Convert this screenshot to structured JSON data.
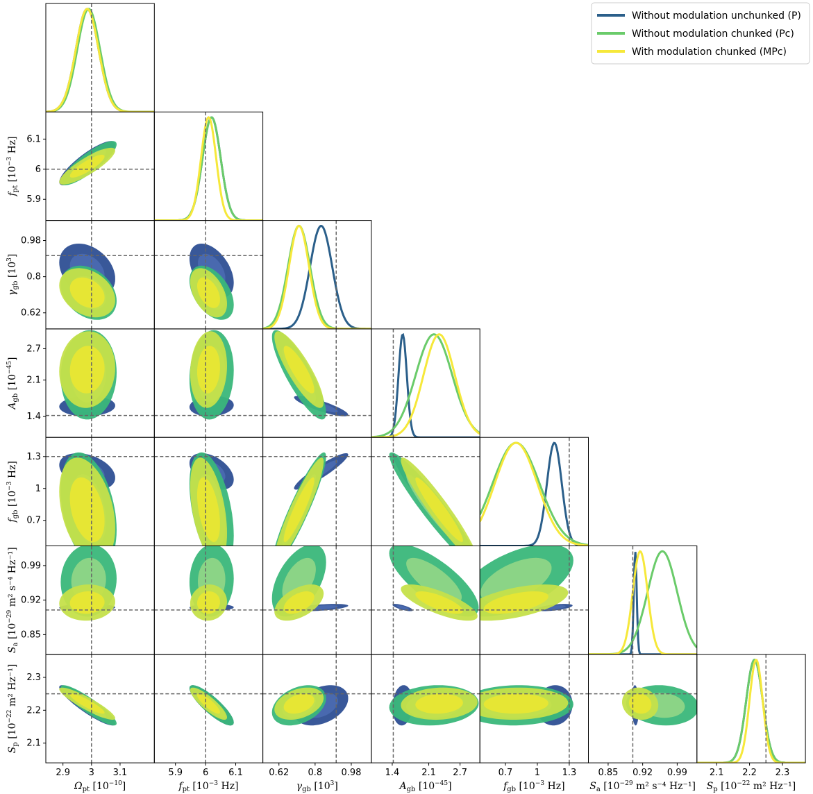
{
  "chart_data": {
    "type": "corner",
    "grid": false,
    "legend_position": "top-right",
    "params": [
      {
        "id": "omega_pt",
        "label": "Ω",
        "sub": "pt",
        "unit": "[10",
        "unit_exp": "−10",
        "unit_tail": "]",
        "range": [
          2.84,
          3.22
        ],
        "ticks": [
          "2.9",
          "3",
          "3.1"
        ],
        "tick_values": [
          2.9,
          3.0,
          3.1
        ],
        "truth": 3.0
      },
      {
        "id": "f_pt",
        "label": "f",
        "sub": "pt",
        "unit": "[10",
        "unit_exp": "−3",
        "unit_tail": " Hz]",
        "range": [
          5.83,
          6.19
        ],
        "ticks": [
          "5.9",
          "6",
          "6.1"
        ],
        "tick_values": [
          5.9,
          6.0,
          6.1
        ],
        "truth": 6.0
      },
      {
        "id": "gamma_gb",
        "label": "γ",
        "sub": "gb",
        "unit": "[10",
        "unit_exp": "3",
        "unit_tail": "]",
        "range": [
          0.54,
          1.08
        ],
        "ticks": [
          "0.62",
          "0.8",
          "0.98"
        ],
        "tick_values": [
          0.62,
          0.8,
          0.98
        ],
        "truth": 0.905
      },
      {
        "id": "A_gb",
        "label": "A",
        "sub": "gb",
        "unit": "[10",
        "unit_exp": "−45",
        "unit_tail": "]",
        "range": [
          1.0,
          3.08
        ],
        "ticks": [
          "1.4",
          "2.1",
          "2.7"
        ],
        "tick_values": [
          1.4,
          2.1,
          2.7
        ],
        "truth": 1.42
      },
      {
        "id": "f_gb",
        "label": "f",
        "sub": "gb",
        "unit": "[10",
        "unit_exp": "−3",
        "unit_tail": " Hz]",
        "range": [
          0.46,
          1.48
        ],
        "ticks": [
          "0.7",
          "1",
          "1.3"
        ],
        "tick_values": [
          0.7,
          1.0,
          1.3
        ],
        "truth": 1.3
      },
      {
        "id": "S_a",
        "label": "S",
        "sub": "a",
        "unit": "[10",
        "unit_exp": "−29",
        "unit_tail": " m² s⁻⁴ Hz⁻¹]",
        "range": [
          0.81,
          1.03
        ],
        "ticks": [
          "0.85",
          "0.92",
          "0.99"
        ],
        "tick_values": [
          0.85,
          0.92,
          0.99
        ],
        "truth": 0.9
      },
      {
        "id": "S_p",
        "label": "S",
        "sub": "p",
        "unit": "[10",
        "unit_exp": "−22",
        "unit_tail": " m² Hz⁻¹]",
        "range": [
          2.04,
          2.37
        ],
        "ticks": [
          "2.1",
          "2.2",
          "2.3"
        ],
        "tick_values": [
          2.1,
          2.2,
          2.3
        ],
        "truth": 2.25
      }
    ],
    "series": [
      {
        "name": "Without modulation unchunked (P)",
        "line_color": "#2b5f8a",
        "fill_outer": "#2e4f93",
        "fill_inner": "#4a6ab0",
        "means": [
          2.985,
          6.02,
          0.83,
          1.6,
          1.16,
          0.905,
          2.215
        ],
        "sds": [
          0.04,
          0.03,
          0.055,
          0.08,
          0.07,
          0.003,
          0.025
        ]
      },
      {
        "name": "Without modulation chunked (Pc)",
        "line_color": "#6acb6a",
        "fill_outer": "#3ab77a",
        "fill_inner": "#8fd586",
        "means": [
          2.99,
          6.02,
          0.72,
          2.2,
          0.8,
          0.96,
          2.215
        ],
        "sds": [
          0.04,
          0.03,
          0.055,
          0.35,
          0.22,
          0.03,
          0.025
        ]
      },
      {
        "name": "With modulation chunked (MPc)",
        "line_color": "#f6e83a",
        "fill_outer": "#c5e04a",
        "fill_inner": "#e8e633",
        "means": [
          2.985,
          6.01,
          0.72,
          2.3,
          0.8,
          0.915,
          2.22
        ],
        "sds": [
          0.04,
          0.025,
          0.05,
          0.3,
          0.2,
          0.015,
          0.02
        ]
      }
    ]
  }
}
